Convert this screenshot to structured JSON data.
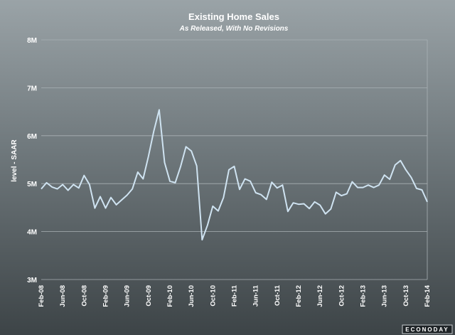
{
  "brand": {
    "name": "ECONODAY"
  },
  "colors": {
    "line": "#cfe3f1",
    "grid": "#a9b1b5",
    "text": "#ffffff"
  },
  "chart_data": {
    "type": "line",
    "title": "Existing Home Sales",
    "subtitle": "As Released, With No Revisions",
    "ylabel": "level - SAAR",
    "xlabel": "",
    "ylim": [
      3,
      8
    ],
    "yunit": "M",
    "yticks": [
      3,
      4,
      5,
      6,
      7,
      8
    ],
    "y_tick_labels": [
      "3M",
      "4M",
      "5M",
      "6M",
      "7M",
      "8M"
    ],
    "grid": true,
    "x_tick_labels": [
      "Feb-08",
      "Jun-08",
      "Oct-08",
      "Feb-09",
      "Jun-09",
      "Oct-09",
      "Feb-10",
      "Jun-10",
      "Oct-10",
      "Feb-11",
      "Jun-11",
      "Oct-11",
      "Feb-12",
      "Jun-12",
      "Oct-12",
      "Feb-13",
      "Jun-13",
      "Oct-13",
      "Feb-14"
    ],
    "x_start": "Feb-08",
    "x_end": "Feb-14",
    "series": [
      {
        "values": [
          4.89,
          5.02,
          4.93,
          4.89,
          4.98,
          4.86,
          4.98,
          4.91,
          5.17,
          4.98,
          4.49,
          4.73,
          4.49,
          4.71,
          4.56,
          4.66,
          4.76,
          4.89,
          5.24,
          5.1,
          5.57,
          6.1,
          6.54,
          5.44,
          5.05,
          5.02,
          5.36,
          5.77,
          5.68,
          5.37,
          3.83,
          4.13,
          4.53,
          4.43,
          4.71,
          5.29,
          5.36,
          4.88,
          5.1,
          5.05,
          4.81,
          4.77,
          4.67,
          5.03,
          4.91,
          4.97,
          4.42,
          4.6,
          4.57,
          4.58,
          4.48,
          4.62,
          4.55,
          4.37,
          4.47,
          4.82,
          4.75,
          4.79,
          5.04,
          4.92,
          4.92,
          4.97,
          4.92,
          4.97,
          5.18,
          5.09,
          5.39,
          5.48,
          5.29,
          5.13,
          4.9,
          4.87,
          4.62
        ]
      }
    ]
  }
}
